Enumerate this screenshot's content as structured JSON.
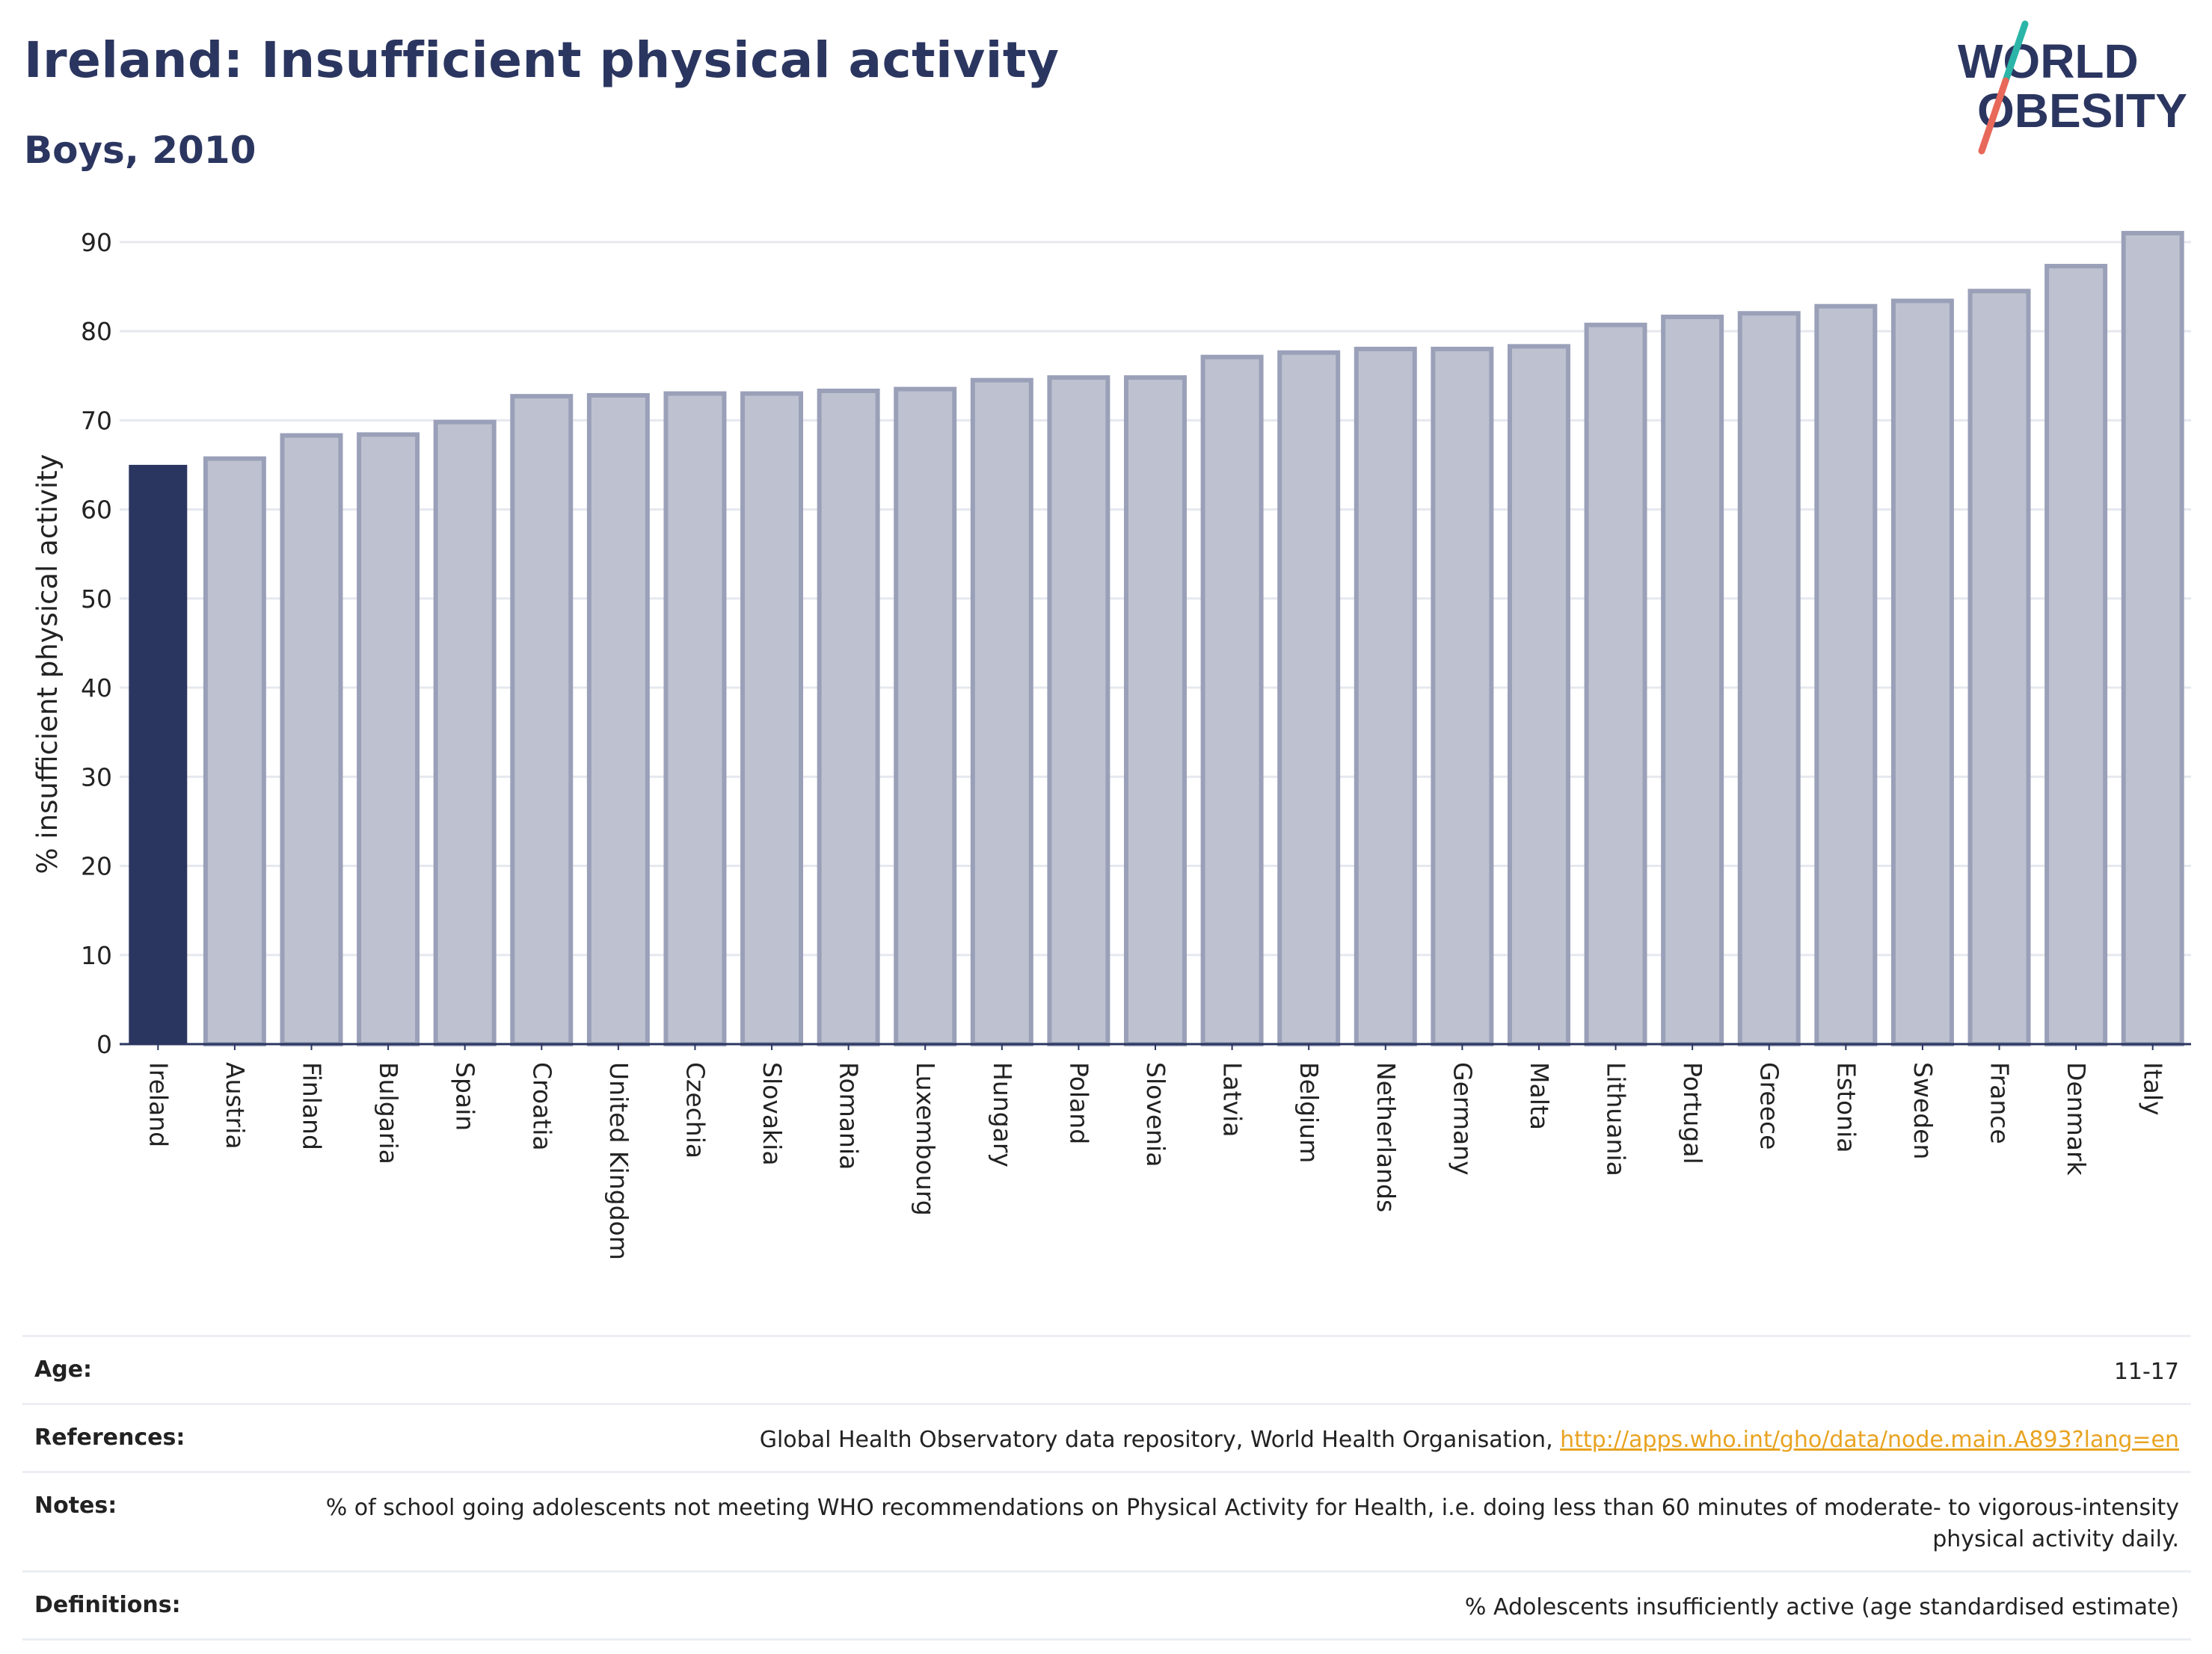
{
  "header": {
    "title": "Ireland: Insufficient physical activity",
    "subtitle": "Boys, 2010"
  },
  "logo": {
    "line1": "WORLD",
    "line2": "OBESITY",
    "slash_color_top": "#2bb5a8",
    "slash_color_bottom": "#e8685a"
  },
  "colors": {
    "highlight": "#2b3660",
    "bar_fill": "#bec2d0",
    "bar_stroke": "#9aa0b8",
    "text": "#2b3660"
  },
  "chart_data": {
    "type": "bar",
    "categories": [
      "Ireland",
      "Austria",
      "Finland",
      "Bulgaria",
      "Spain",
      "Croatia",
      "United Kingdom",
      "Czechia",
      "Slovakia",
      "Romania",
      "Luxembourg",
      "Hungary",
      "Poland",
      "Slovenia",
      "Latvia",
      "Belgium",
      "Netherlands",
      "Germany",
      "Malta",
      "Lithuania",
      "Portugal",
      "Greece",
      "Estonia",
      "Sweden",
      "France",
      "Denmark",
      "Italy"
    ],
    "values": [
      65,
      65.7,
      68.3,
      68.4,
      69.8,
      72.7,
      72.8,
      73,
      73,
      73.3,
      73.5,
      74.5,
      74.8,
      74.8,
      77.1,
      77.6,
      78,
      78,
      78.3,
      80.7,
      81.6,
      82,
      82.8,
      83.4,
      84.5,
      87.3,
      91
    ],
    "highlight": "Ireland",
    "ylabel": "% insufficient physical activity",
    "xlabel": "",
    "ylim": [
      0,
      92
    ],
    "yticks": [
      0,
      10,
      20,
      30,
      40,
      50,
      60,
      70,
      80,
      90
    ],
    "grid": true
  },
  "meta": [
    {
      "key": "Age:",
      "value": "11-17"
    },
    {
      "key": "References:",
      "value": "Global Health Observatory data repository, World Health Organisation, ",
      "link": "http://apps.who.int/gho/data/node.main.A893?lang=en"
    },
    {
      "key": "Notes:",
      "value": "% of school going adolescents not meeting WHO recommendations on Physical Activity for Health, i.e. doing less than 60 minutes of moderate- to vigorous-intensity physical activity daily."
    },
    {
      "key": "Definitions:",
      "value": "% Adolescents insufficiently active (age standardised estimate)"
    }
  ]
}
